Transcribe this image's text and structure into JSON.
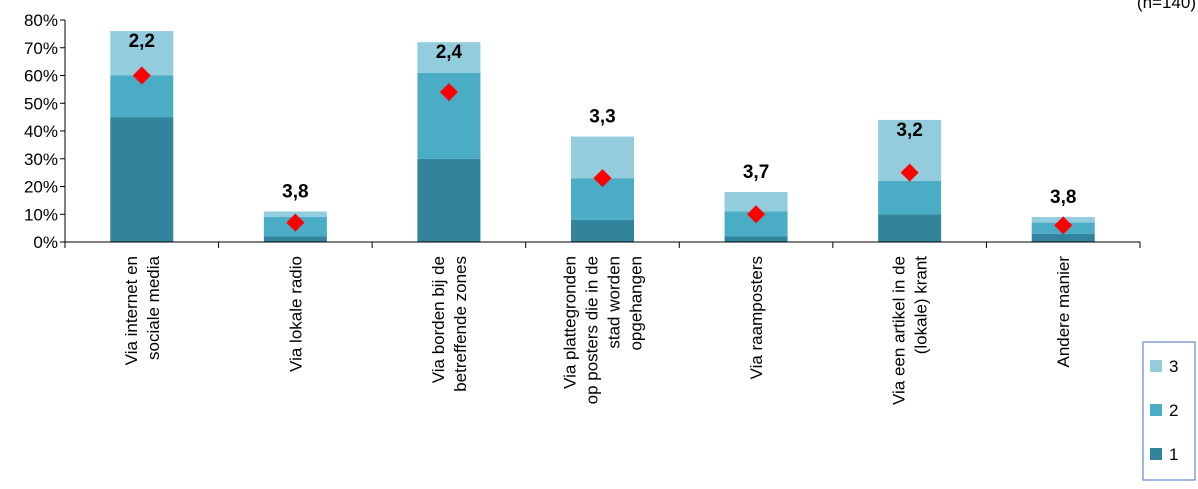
{
  "chart_data": {
    "type": "bar",
    "stacked": true,
    "note": "(n=140)",
    "categories": [
      [
        "Via internet en",
        "sociale media"
      ],
      [
        "Via lokale radio"
      ],
      [
        "Via borden bij de",
        "betreffende zones"
      ],
      [
        "Via plattegronden",
        "op posters die in de",
        "stad worden",
        "opgehangen"
      ],
      [
        "Via raamposters"
      ],
      [
        "Via een artikel in de",
        "(lokale) krant"
      ],
      [
        "Andere manier"
      ]
    ],
    "series": [
      {
        "name": "1",
        "color": "#31849b",
        "values": [
          45,
          2,
          30,
          8,
          2,
          10,
          3
        ]
      },
      {
        "name": "2",
        "color": "#4bacc6",
        "values": [
          15,
          7,
          31,
          15,
          9,
          12,
          4
        ]
      },
      {
        "name": "3",
        "color": "#93cddd",
        "values": [
          16,
          2,
          11,
          15,
          7,
          22,
          2
        ]
      }
    ],
    "averages": {
      "labels": [
        "2,2",
        "3,8",
        "2,4",
        "3,3",
        "3,7",
        "3,2",
        "3,8"
      ],
      "marker_values": [
        60,
        7,
        54,
        23,
        10,
        25,
        6
      ],
      "marker_color": "#ff0000"
    },
    "ylim": [
      0,
      80
    ],
    "yticks": [
      "0%",
      "10%",
      "20%",
      "30%",
      "40%",
      "50%",
      "60%",
      "70%",
      "80%"
    ],
    "legend_position": "right",
    "grid": false
  }
}
